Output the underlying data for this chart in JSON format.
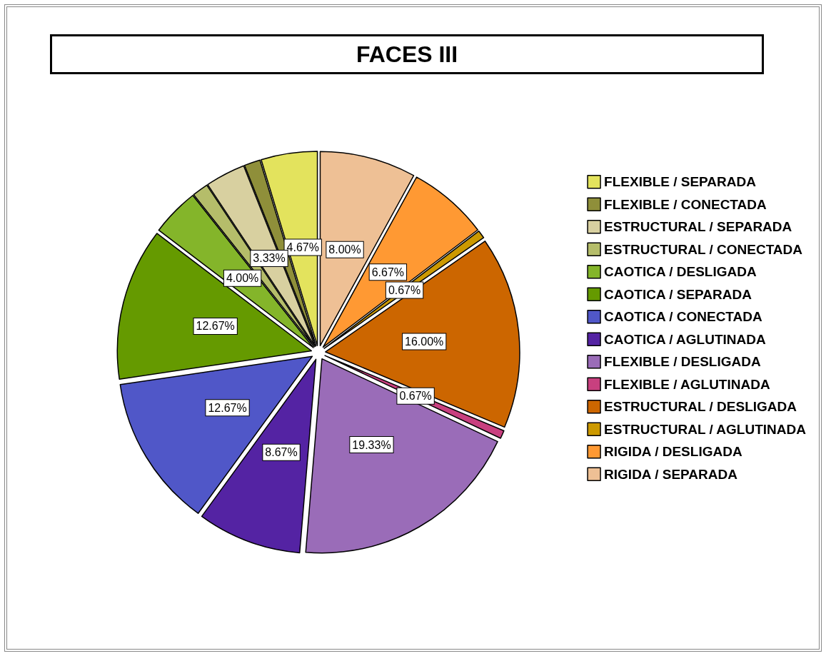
{
  "chart_data": {
    "type": "pie",
    "title": "FACES III",
    "categories": [
      "FLEXIBLE / SEPARADA",
      "FLEXIBLE / CONECTADA",
      "ESTRUCTURAL / SEPARADA",
      "ESTRUCTURAL / CONECTADA",
      "CAOTICA / DESLIGADA",
      "CAOTICA / SEPARADA",
      "CAOTICA / CONECTADA",
      "CAOTICA / AGLUTINADA",
      "FLEXIBLE / DESLIGADA",
      "FLEXIBLE / AGLUTINADA",
      "ESTRUCTURAL / DESLIGADA",
      "ESTRUCTURAL / AGLUTINADA",
      "RIGIDA / DESLIGADA",
      "RIGIDA / SEPARADA"
    ],
    "values": [
      4.67,
      1.33,
      3.33,
      1.33,
      4.0,
      12.67,
      12.67,
      8.67,
      19.33,
      0.67,
      16.0,
      0.67,
      6.67,
      8.0
    ],
    "value_labels": [
      "4.67%",
      null,
      "3.33%",
      null,
      "4.00%",
      "12.67%",
      "12.67%",
      "8.67%",
      "19.33%",
      "0.67%",
      "16.00%",
      "0.67%",
      "6.67%",
      "8.00%"
    ],
    "colors": [
      "#e3e35d",
      "#8f8f3a",
      "#d8d0a0",
      "#b5bd6a",
      "#84b52a",
      "#659a00",
      "#5057c8",
      "#5423a3",
      "#9a6cb8",
      "#c8407f",
      "#cc6600",
      "#cc9900",
      "#ff9933",
      "#eec095"
    ],
    "legend": "right"
  }
}
